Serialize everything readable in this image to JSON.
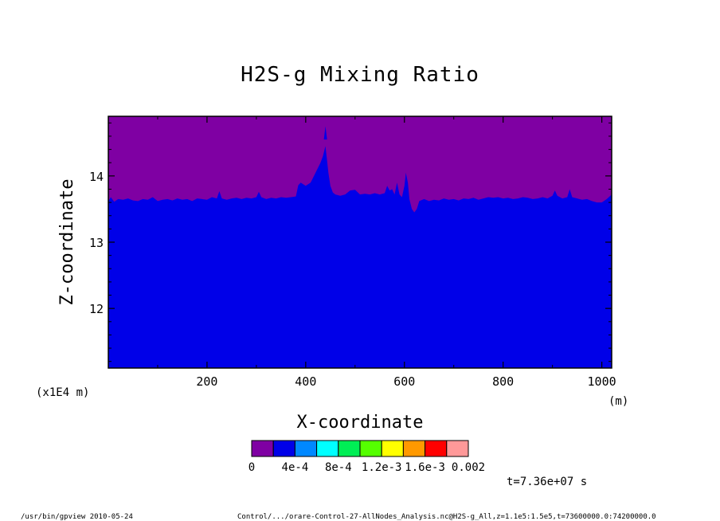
{
  "chart_data": {
    "type": "heatmap",
    "title": "H2S-g Mixing Ratio",
    "xlabel": "X-coordinate",
    "ylabel": "Z-coordinate",
    "x_unit": "(m)",
    "y_unit": "(x1E4 m)",
    "xlim": [
      0,
      1020
    ],
    "ylim": [
      11.1,
      14.9
    ],
    "x_ticks": [
      200,
      400,
      600,
      800,
      1000
    ],
    "y_ticks": [
      12,
      13,
      14
    ],
    "boundary_profile": {
      "x": [
        0,
        5,
        12,
        20,
        30,
        40,
        50,
        60,
        70,
        80,
        90,
        100,
        110,
        120,
        130,
        140,
        150,
        160,
        170,
        180,
        190,
        200,
        210,
        220,
        225,
        230,
        240,
        250,
        260,
        270,
        280,
        290,
        300,
        305,
        310,
        320,
        330,
        340,
        350,
        360,
        370,
        380,
        385,
        390,
        400,
        410,
        420,
        430,
        435,
        440,
        443,
        446,
        450,
        455,
        460,
        470,
        480,
        490,
        500,
        510,
        520,
        530,
        540,
        550,
        560,
        565,
        570,
        575,
        580,
        585,
        590,
        595,
        600,
        603,
        607,
        610,
        615,
        620,
        625,
        630,
        640,
        650,
        660,
        670,
        680,
        690,
        700,
        710,
        720,
        730,
        740,
        750,
        760,
        770,
        780,
        790,
        800,
        810,
        820,
        830,
        840,
        850,
        860,
        870,
        880,
        890,
        900,
        905,
        910,
        920,
        930,
        935,
        940,
        950,
        960,
        970,
        980,
        990,
        1000,
        1010,
        1020
      ],
      "z": [
        13.62,
        13.68,
        13.61,
        13.65,
        13.64,
        13.66,
        13.63,
        13.62,
        13.65,
        13.64,
        13.68,
        13.62,
        13.64,
        13.65,
        13.63,
        13.66,
        13.64,
        13.65,
        13.62,
        13.66,
        13.65,
        13.64,
        13.68,
        13.66,
        13.77,
        13.66,
        13.64,
        13.66,
        13.67,
        13.65,
        13.67,
        13.66,
        13.68,
        13.76,
        13.68,
        13.65,
        13.67,
        13.66,
        13.68,
        13.67,
        13.68,
        13.69,
        13.86,
        13.9,
        13.85,
        13.9,
        14.05,
        14.2,
        14.3,
        14.45,
        14.25,
        14.05,
        13.85,
        13.75,
        13.72,
        13.7,
        13.72,
        13.78,
        13.79,
        13.72,
        13.73,
        13.72,
        13.74,
        13.72,
        13.74,
        13.85,
        13.78,
        13.8,
        13.72,
        13.9,
        13.72,
        13.68,
        13.85,
        14.05,
        13.9,
        13.65,
        13.5,
        13.45,
        13.5,
        13.62,
        13.65,
        13.62,
        13.64,
        13.63,
        13.66,
        13.64,
        13.65,
        13.63,
        13.66,
        13.65,
        13.67,
        13.64,
        13.66,
        13.68,
        13.67,
        13.68,
        13.66,
        13.67,
        13.65,
        13.66,
        13.68,
        13.67,
        13.65,
        13.66,
        13.68,
        13.66,
        13.7,
        13.78,
        13.7,
        13.66,
        13.68,
        13.8,
        13.68,
        13.66,
        13.64,
        13.65,
        13.62,
        13.6,
        13.6,
        13.65,
        13.72
      ],
      "spike_x": 440,
      "spike_z": [
        14.55,
        14.75
      ],
      "below_value_level": 1,
      "above_value_level": 0
    },
    "colorbar": {
      "colors": [
        "#7f00a3",
        "#0000e8",
        "#0088ff",
        "#00ffff",
        "#00ee55",
        "#55ff00",
        "#ffff00",
        "#ff9900",
        "#ff0000",
        "#ff9999"
      ],
      "labels": [
        "0",
        "4e-4",
        "8e-4",
        "1.2e-3",
        "1.6e-3",
        "0.002"
      ],
      "tick_index": [
        0,
        2,
        4,
        6,
        8,
        10
      ]
    },
    "time_label": "t=7.36e+07 s"
  },
  "footer": {
    "left": "/usr/bin/gpview   2010-05-24",
    "right": "Control/.../orare-Control-27-AllNodes_Analysis.nc@H2S-g_All,z=1.1e5:1.5e5,t=73600000.0:74200000.0"
  }
}
